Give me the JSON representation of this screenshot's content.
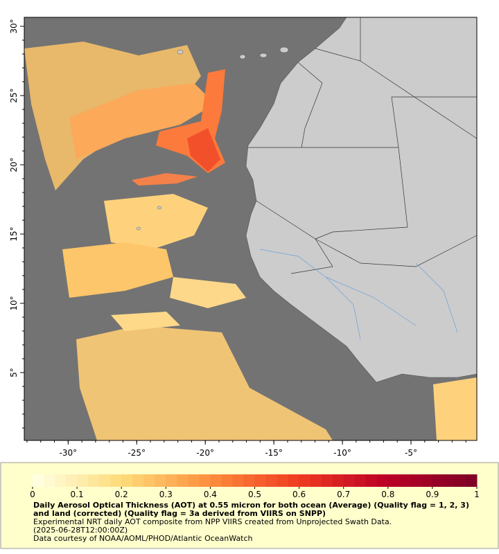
{
  "map": {
    "xlim": [
      -33.2,
      -0.2
    ],
    "ylim": [
      0.1,
      30.65
    ],
    "xticks": [
      {
        "value": -30,
        "label": "-30°"
      },
      {
        "value": -25,
        "label": "-25°"
      },
      {
        "value": -20,
        "label": "-20°"
      },
      {
        "value": -15,
        "label": "-15°"
      },
      {
        "value": -10,
        "label": "-10°"
      },
      {
        "value": -5,
        "label": "-5°"
      }
    ],
    "yticks": [
      {
        "value": 5,
        "label": "5°"
      },
      {
        "value": 10,
        "label": "10°"
      },
      {
        "value": 15,
        "label": "15°"
      },
      {
        "value": 20,
        "label": "20°"
      },
      {
        "value": 25,
        "label": "25°"
      },
      {
        "value": 30,
        "label": "30°"
      }
    ],
    "colorbar": {
      "range": [
        0,
        1
      ],
      "ticks": [
        0,
        0.1,
        0.2,
        0.3,
        0.4,
        0.5,
        0.6,
        0.7,
        0.8,
        0.9,
        1
      ]
    },
    "title": "Daily Aerosol Optical Thickness (AOT) at 0.55 micron for both ocean (Average) (Quality flag = 1, 2, 3) and land (corrected) (Quality flag = 3a derived from VIIRS on SNPP)",
    "notes": [
      "Experimental NRT daily AOT composite from NPP VIIRS created from Unprojected Swath Data.",
      "(2025-06-28T12:00:00Z)",
      "Data courtesy of NOAA/AOML/PHOD/Atlantic OceanWatch"
    ]
  }
}
